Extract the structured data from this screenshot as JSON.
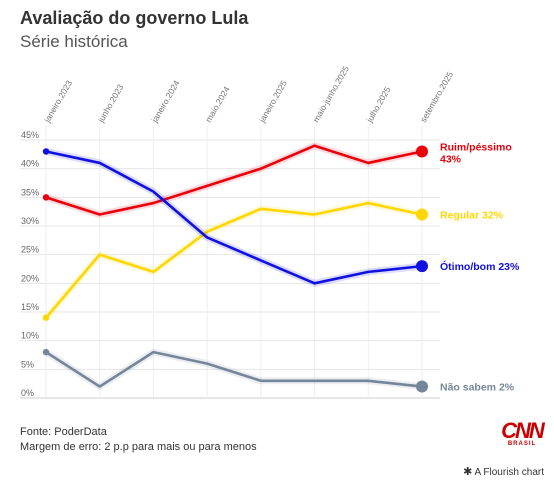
{
  "header": {
    "title": "Avaliação do governo Lula",
    "subtitle": "Série histórica"
  },
  "footer": {
    "source": "Fonte: PoderData",
    "margin": "Margem de erro: 2 p.p para mais ou para menos",
    "brand": "CNN",
    "brand_sub": "BRASIL",
    "credit": "A Flourish chart"
  },
  "chart_data": {
    "type": "line",
    "x_labels": [
      "janeiro.2023",
      "junho.2023",
      "janeiro.2024",
      "maio.2024",
      "janeiro.2025",
      "maio-junho.2025",
      "julho.2025",
      "setembro.2025"
    ],
    "y_ticks": [
      "0%",
      "5%",
      "10%",
      "15%",
      "20%",
      "25%",
      "30%",
      "35%",
      "40%",
      "45%"
    ],
    "ylim": [
      0,
      45
    ],
    "grid": true,
    "series": [
      {
        "name": "Ruim/péssimo",
        "end_label": "43%",
        "color": "#e8000b",
        "values": [
          35,
          32,
          34,
          37,
          40,
          44,
          41,
          43
        ]
      },
      {
        "name": "Regular",
        "end_label": "32%",
        "color": "#ffd700",
        "values": [
          14,
          25,
          22,
          29,
          33,
          32,
          34,
          32
        ]
      },
      {
        "name": "Ótimo/bom",
        "end_label": "23%",
        "color": "#1010e0",
        "values": [
          43,
          41,
          36,
          28,
          24,
          20,
          22,
          23
        ]
      },
      {
        "name": "Não sabem",
        "end_label": "2%",
        "color": "#76869a",
        "values": [
          8,
          2,
          8,
          6,
          3,
          3,
          3,
          2
        ]
      }
    ]
  }
}
